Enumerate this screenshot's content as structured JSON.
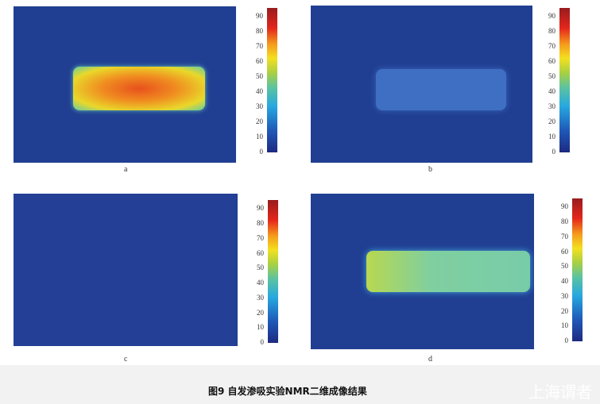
{
  "figure": {
    "caption": "图9   自发渗吸实验NMR二维成像结果",
    "watermark": "上海谓者",
    "colorbar_ticks": [
      "0",
      "10",
      "20",
      "30",
      "40",
      "50",
      "60",
      "70",
      "80",
      "90"
    ],
    "colormap": [
      "#1d2a80",
      "#27a8e0",
      "#a8d043",
      "#f3e020",
      "#e4261c",
      "#991b1e"
    ],
    "background_color": "#203f92",
    "panels": [
      {
        "label": "a"
      },
      {
        "label": "b"
      },
      {
        "label": "c"
      },
      {
        "label": "d"
      }
    ]
  }
}
